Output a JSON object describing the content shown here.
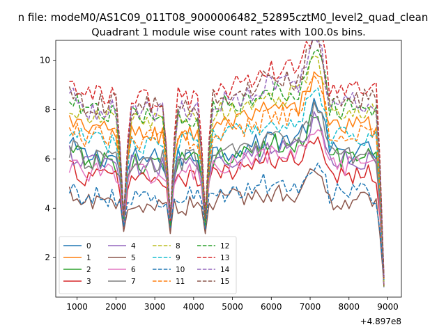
{
  "suptitle": "n file: modeM0/AS1C09_011T08_9000006482_52895cztM0_level2_quad_clean",
  "chart_data": {
    "type": "line",
    "title": "Quadrant 1 module wise count rates with 100.0s bins.",
    "xlabel": "",
    "ylabel": "",
    "x_offset_label": "+4.897e8",
    "xlim": [
      450,
      9350
    ],
    "ylim": [
      0.4,
      10.8
    ],
    "x_ticks": [
      1000,
      2000,
      3000,
      4000,
      5000,
      6000,
      7000,
      8000,
      9000
    ],
    "x_tick_labels": [
      "1000",
      "2000",
      "3000",
      "4000",
      "5000",
      "6000",
      "7000",
      "8000",
      "9000"
    ],
    "y_ticks": [
      2,
      4,
      6,
      8,
      10
    ],
    "y_tick_labels": [
      "2",
      "4",
      "6",
      "8",
      "10"
    ],
    "grid": false,
    "legend_position": "lower-left",
    "series": [
      {
        "name": "0",
        "color": "#1f77b4",
        "dash": "solid",
        "base": 6.0,
        "dip_to": 3.5
      },
      {
        "name": "1",
        "color": "#ff7f0e",
        "dash": "solid",
        "base": 7.0,
        "dip_to": 3.4
      },
      {
        "name": "2",
        "color": "#2ca02c",
        "dash": "solid",
        "base": 5.8,
        "dip_to": 3.4
      },
      {
        "name": "3",
        "color": "#d62728",
        "dash": "solid",
        "base": 5.2,
        "dip_to": 3.2
      },
      {
        "name": "4",
        "color": "#9467bd",
        "dash": "solid",
        "base": 5.7,
        "dip_to": 3.3
      },
      {
        "name": "5",
        "color": "#8c564b",
        "dash": "solid",
        "base": 4.1,
        "dip_to": 3.0
      },
      {
        "name": "6",
        "color": "#e377c2",
        "dash": "solid",
        "base": 5.4,
        "dip_to": 3.3
      },
      {
        "name": "7",
        "color": "#7f7f7f",
        "dash": "solid",
        "base": 5.9,
        "dip_to": 3.4
      },
      {
        "name": "8",
        "color": "#bcbd22",
        "dash": "dashed",
        "base": 7.5,
        "dip_to": 3.6
      },
      {
        "name": "9",
        "color": "#17becf",
        "dash": "dashed",
        "base": 6.6,
        "dip_to": 3.5
      },
      {
        "name": "10",
        "color": "#1f77b4",
        "dash": "dashed",
        "base": 4.4,
        "dip_to": 3.2
      },
      {
        "name": "11",
        "color": "#ff7f0e",
        "dash": "dashed",
        "base": 6.8,
        "dip_to": 3.5
      },
      {
        "name": "12",
        "color": "#2ca02c",
        "dash": "dashed",
        "base": 7.7,
        "dip_to": 3.5
      },
      {
        "name": "13",
        "color": "#d62728",
        "dash": "dashed",
        "base": 8.4,
        "dip_to": 3.6
      },
      {
        "name": "14",
        "color": "#9467bd",
        "dash": "dashed",
        "base": 7.9,
        "dip_to": 3.6
      },
      {
        "name": "15",
        "color": "#8c564b",
        "dash": "dashed",
        "base": 8.1,
        "dip_to": 3.6
      }
    ]
  }
}
